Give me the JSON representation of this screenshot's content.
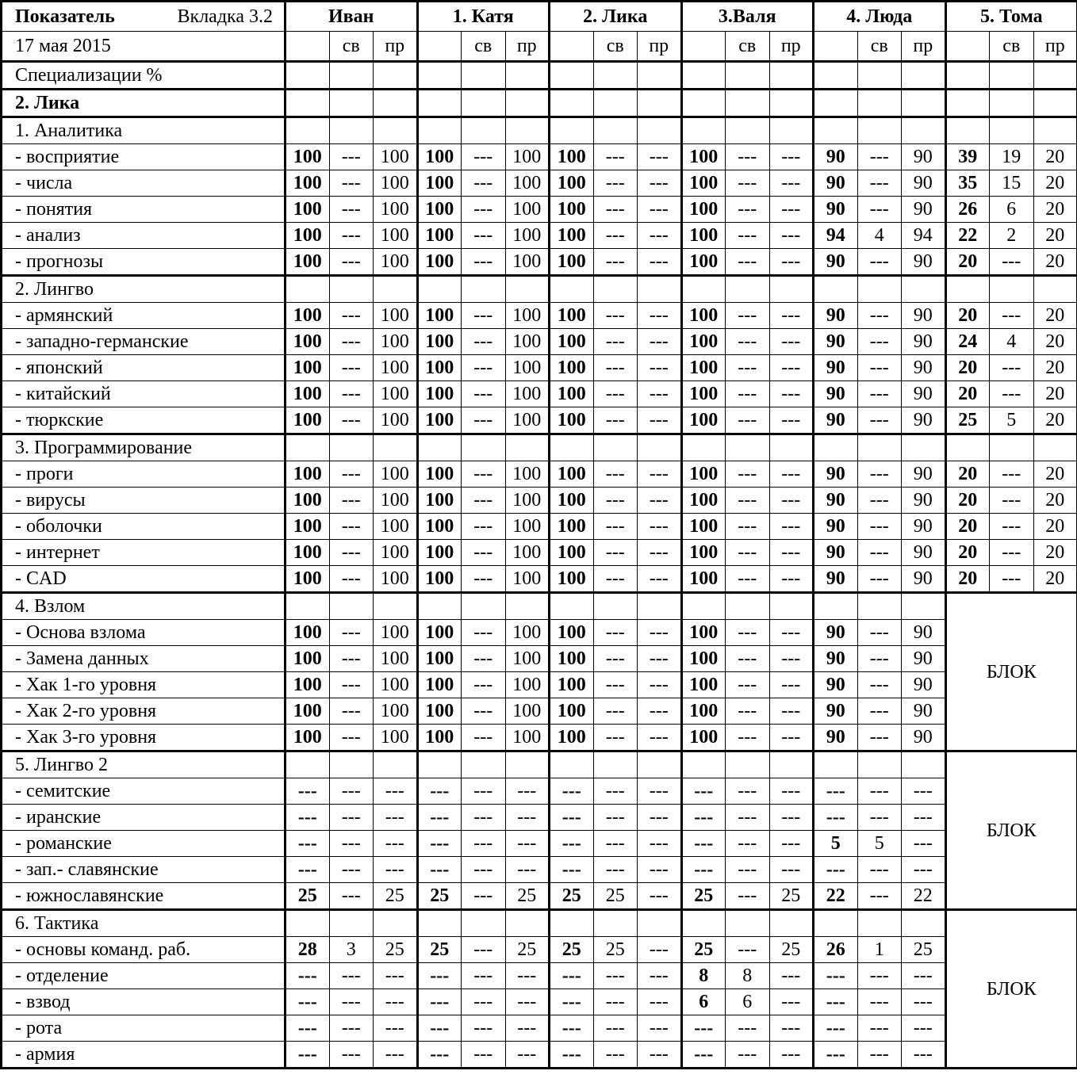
{
  "header": {
    "title": "Показатель",
    "tab": "Вкладка 3.2",
    "date": "17 мая 2015",
    "people": [
      "Иван",
      "1. Катя",
      "2. Лика",
      "3.Валя",
      "4. Люда",
      "5. Тома"
    ],
    "sub": [
      "",
      "св",
      "пр"
    ]
  },
  "spec_label": "Специализации %",
  "subject": "2. Лика",
  "sections": [
    {
      "title": "1. Аналитика",
      "block": null,
      "rows": [
        {
          "label": "- восприятие",
          "values": [
            "100",
            "---",
            "100",
            "100",
            "---",
            "100",
            "100",
            "---",
            "---",
            "100",
            "---",
            "---",
            "90",
            "---",
            "90",
            "39",
            "19",
            "20"
          ]
        },
        {
          "label": "- числа",
          "values": [
            "100",
            "---",
            "100",
            "100",
            "---",
            "100",
            "100",
            "---",
            "---",
            "100",
            "---",
            "---",
            "90",
            "---",
            "90",
            "35",
            "15",
            "20"
          ]
        },
        {
          "label": "- понятия",
          "values": [
            "100",
            "---",
            "100",
            "100",
            "---",
            "100",
            "100",
            "---",
            "---",
            "100",
            "---",
            "---",
            "90",
            "---",
            "90",
            "26",
            "6",
            "20"
          ]
        },
        {
          "label": "- анализ",
          "values": [
            "100",
            "---",
            "100",
            "100",
            "---",
            "100",
            "100",
            "---",
            "---",
            "100",
            "---",
            "---",
            "94",
            "4",
            "94",
            "22",
            "2",
            "20"
          ]
        },
        {
          "label": "- прогнозы",
          "values": [
            "100",
            "---",
            "100",
            "100",
            "---",
            "100",
            "100",
            "---",
            "---",
            "100",
            "---",
            "---",
            "90",
            "---",
            "90",
            "20",
            "---",
            "20"
          ]
        }
      ]
    },
    {
      "title": "2. Лингво",
      "block": null,
      "rows": [
        {
          "label": "- армянский",
          "values": [
            "100",
            "---",
            "100",
            "100",
            "---",
            "100",
            "100",
            "---",
            "---",
            "100",
            "---",
            "---",
            "90",
            "---",
            "90",
            "20",
            "---",
            "20"
          ]
        },
        {
          "label": "- западно-германские",
          "values": [
            "100",
            "---",
            "100",
            "100",
            "---",
            "100",
            "100",
            "---",
            "---",
            "100",
            "---",
            "---",
            "90",
            "---",
            "90",
            "24",
            "4",
            "20"
          ]
        },
        {
          "label": "- японский",
          "values": [
            "100",
            "---",
            "100",
            "100",
            "---",
            "100",
            "100",
            "---",
            "---",
            "100",
            "---",
            "---",
            "90",
            "---",
            "90",
            "20",
            "---",
            "20"
          ]
        },
        {
          "label": "- китайский",
          "values": [
            "100",
            "---",
            "100",
            "100",
            "---",
            "100",
            "100",
            "---",
            "---",
            "100",
            "---",
            "---",
            "90",
            "---",
            "90",
            "20",
            "---",
            "20"
          ]
        },
        {
          "label": "- тюркские",
          "values": [
            "100",
            "---",
            "100",
            "100",
            "---",
            "100",
            "100",
            "---",
            "---",
            "100",
            "---",
            "---",
            "90",
            "---",
            "90",
            "25",
            "5",
            "20"
          ]
        }
      ]
    },
    {
      "title": "3. Программирование",
      "block": null,
      "rows": [
        {
          "label": "- проги",
          "values": [
            "100",
            "---",
            "100",
            "100",
            "---",
            "100",
            "100",
            "---",
            "---",
            "100",
            "---",
            "---",
            "90",
            "---",
            "90",
            "20",
            "---",
            "20"
          ]
        },
        {
          "label": "- вирусы",
          "values": [
            "100",
            "---",
            "100",
            "100",
            "---",
            "100",
            "100",
            "---",
            "---",
            "100",
            "---",
            "---",
            "90",
            "---",
            "90",
            "20",
            "---",
            "20"
          ]
        },
        {
          "label": "- оболочки",
          "values": [
            "100",
            "---",
            "100",
            "100",
            "---",
            "100",
            "100",
            "---",
            "---",
            "100",
            "---",
            "---",
            "90",
            "---",
            "90",
            "20",
            "---",
            "20"
          ]
        },
        {
          "label": "- интернет",
          "values": [
            "100",
            "---",
            "100",
            "100",
            "---",
            "100",
            "100",
            "---",
            "---",
            "100",
            "---",
            "---",
            "90",
            "---",
            "90",
            "20",
            "---",
            "20"
          ]
        },
        {
          "label": "- CAD",
          "values": [
            "100",
            "---",
            "100",
            "100",
            "---",
            "100",
            "100",
            "---",
            "---",
            "100",
            "---",
            "---",
            "90",
            "---",
            "90",
            "20",
            "---",
            "20"
          ]
        }
      ]
    },
    {
      "title": "4. Взлом",
      "block": "БЛОК",
      "rows": [
        {
          "label": "- Основа взлома",
          "values": [
            "100",
            "---",
            "100",
            "100",
            "---",
            "100",
            "100",
            "---",
            "---",
            "100",
            "---",
            "---",
            "90",
            "---",
            "90"
          ]
        },
        {
          "label": "- Замена данных",
          "values": [
            "100",
            "---",
            "100",
            "100",
            "---",
            "100",
            "100",
            "---",
            "---",
            "100",
            "---",
            "---",
            "90",
            "---",
            "90"
          ]
        },
        {
          "label": "- Хак 1-го уровня",
          "values": [
            "100",
            "---",
            "100",
            "100",
            "---",
            "100",
            "100",
            "---",
            "---",
            "100",
            "---",
            "---",
            "90",
            "---",
            "90"
          ]
        },
        {
          "label": "- Хак 2-го уровня",
          "values": [
            "100",
            "---",
            "100",
            "100",
            "---",
            "100",
            "100",
            "---",
            "---",
            "100",
            "---",
            "---",
            "90",
            "---",
            "90"
          ]
        },
        {
          "label": "- Хак 3-го уровня",
          "values": [
            "100",
            "---",
            "100",
            "100",
            "---",
            "100",
            "100",
            "---",
            "---",
            "100",
            "---",
            "---",
            "90",
            "---",
            "90"
          ]
        }
      ]
    },
    {
      "title": "5. Лингво 2",
      "block": "БЛОК",
      "rows": [
        {
          "label": "- семитские",
          "values": [
            "---",
            "---",
            "---",
            "---",
            "---",
            "---",
            "---",
            "---",
            "---",
            "---",
            "---",
            "---",
            "---",
            "---",
            "---"
          ]
        },
        {
          "label": "- иранские",
          "values": [
            "---",
            "---",
            "---",
            "---",
            "---",
            "---",
            "---",
            "---",
            "---",
            "---",
            "---",
            "---",
            "---",
            "---",
            "---"
          ]
        },
        {
          "label": "- романские",
          "values": [
            "---",
            "---",
            "---",
            "---",
            "---",
            "---",
            "---",
            "---",
            "---",
            "---",
            "---",
            "---",
            "5",
            "5",
            "---"
          ]
        },
        {
          "label": "- зап.- славянские",
          "values": [
            "---",
            "---",
            "---",
            "---",
            "---",
            "---",
            "---",
            "---",
            "---",
            "---",
            "---",
            "---",
            "---",
            "---",
            "---"
          ]
        },
        {
          "label": "- южнославянские",
          "values": [
            "25",
            "---",
            "25",
            "25",
            "---",
            "25",
            "25",
            "25",
            "---",
            "25",
            "---",
            "25",
            "22",
            "---",
            "22"
          ]
        }
      ]
    },
    {
      "title": "6. Тактика",
      "block": "БЛОК",
      "rows": [
        {
          "label": "- основы команд. раб.",
          "values": [
            "28",
            "3",
            "25",
            "25",
            "---",
            "25",
            "25",
            "25",
            "---",
            "25",
            "---",
            "25",
            "26",
            "1",
            "25"
          ]
        },
        {
          "label": "- отделение",
          "values": [
            "---",
            "---",
            "---",
            "---",
            "---",
            "---",
            "---",
            "---",
            "---",
            "8",
            "8",
            "---",
            "---",
            "---",
            "---"
          ]
        },
        {
          "label": "- взвод",
          "values": [
            "---",
            "---",
            "---",
            "---",
            "---",
            "---",
            "---",
            "---",
            "---",
            "6",
            "6",
            "---",
            "---",
            "---",
            "---"
          ]
        },
        {
          "label": "- рота",
          "values": [
            "---",
            "---",
            "---",
            "---",
            "---",
            "---",
            "---",
            "---",
            "---",
            "---",
            "---",
            "---",
            "---",
            "---",
            "---"
          ]
        },
        {
          "label": "- армия",
          "values": [
            "---",
            "---",
            "---",
            "---",
            "---",
            "---",
            "---",
            "---",
            "---",
            "---",
            "---",
            "---",
            "---",
            "---",
            "---"
          ]
        }
      ]
    }
  ]
}
